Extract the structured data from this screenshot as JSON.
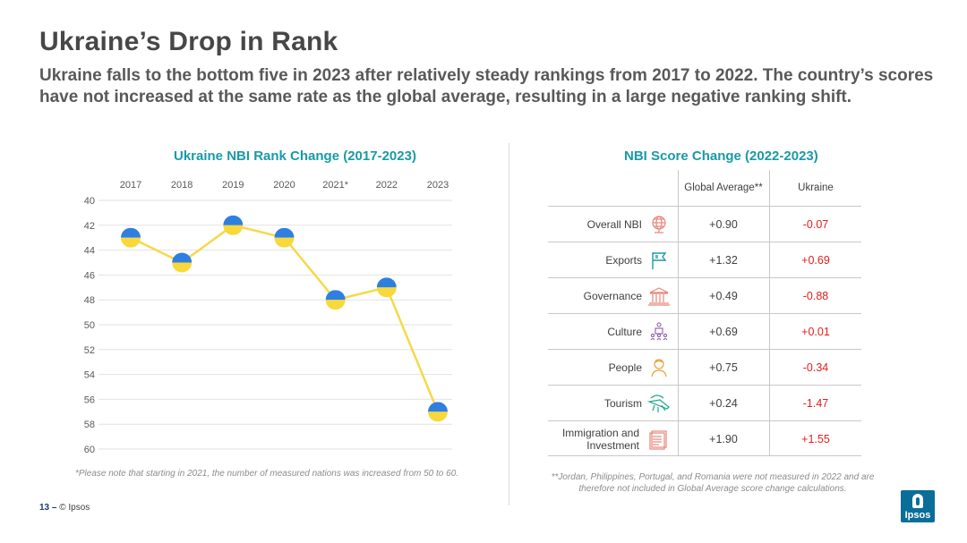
{
  "page": {
    "title": "Ukraine’s Drop in Rank",
    "subtitle": "Ukraine falls to the bottom five in 2023 after relatively steady rankings from 2017 to 2022. The country’s scores have not increased at the same rate as the global average, resulting in a large negative ranking shift.",
    "left_title": "Ukraine NBI Rank Change (2017-2023)",
    "right_title": "NBI Score Change (2022-2023)",
    "left_note": "*Please note that starting in 2021, the number of measured nations was increased from 50 to 60.",
    "right_note": "**Jordan, Philippines, Portugal, and Romania were not measured in 2022 and are therefore not included in Global Average score change calculations.",
    "footer_page": "13",
    "footer_sep": " – ",
    "footer_copy": "© Ipsos",
    "logo_text": "Ipsos"
  },
  "colors": {
    "accent": "#1a9aa6",
    "line": "#f6d84a",
    "ukraine_blue": "#2f7fe0",
    "ukraine_yellow": "#f8d83a",
    "negative": "#e0201e"
  },
  "chart_data": [
    {
      "type": "line",
      "title": "Ukraine NBI Rank Change (2017-2023)",
      "categories": [
        "2017",
        "2018",
        "2019",
        "2020",
        "2021*",
        "2022",
        "2023"
      ],
      "values": [
        43,
        45,
        42,
        43,
        48,
        47,
        57
      ],
      "ylim": [
        40,
        60
      ],
      "yticks": [
        40,
        42,
        44,
        46,
        48,
        50,
        52,
        54,
        56,
        58,
        60
      ],
      "y_inverted": true,
      "xlabel": "",
      "ylabel": "",
      "grid": true
    },
    {
      "type": "table",
      "title": "NBI Score Change (2022-2023)",
      "columns": [
        "",
        "Global Average**",
        "Ukraine"
      ],
      "rows": [
        {
          "label": "Overall NBI",
          "icon": "globe-icon",
          "global": "+0.90",
          "ukraine": "-0.07"
        },
        {
          "label": "Exports",
          "icon": "flag-icon",
          "global": "+1.32",
          "ukraine": "+0.69"
        },
        {
          "label": "Governance",
          "icon": "government-building-icon",
          "global": "+0.49",
          "ukraine": "-0.88"
        },
        {
          "label": "Culture",
          "icon": "culture-people-icon",
          "global": "+0.69",
          "ukraine": "+0.01"
        },
        {
          "label": "People",
          "icon": "person-icon",
          "global": "+0.75",
          "ukraine": "-0.34"
        },
        {
          "label": "Tourism",
          "icon": "tourism-plane-icon",
          "global": "+0.24",
          "ukraine": "-1.47"
        },
        {
          "label": "Immigration and Investment",
          "icon": "document-icon",
          "global": "+1.90",
          "ukraine": "+1.55"
        }
      ]
    }
  ]
}
